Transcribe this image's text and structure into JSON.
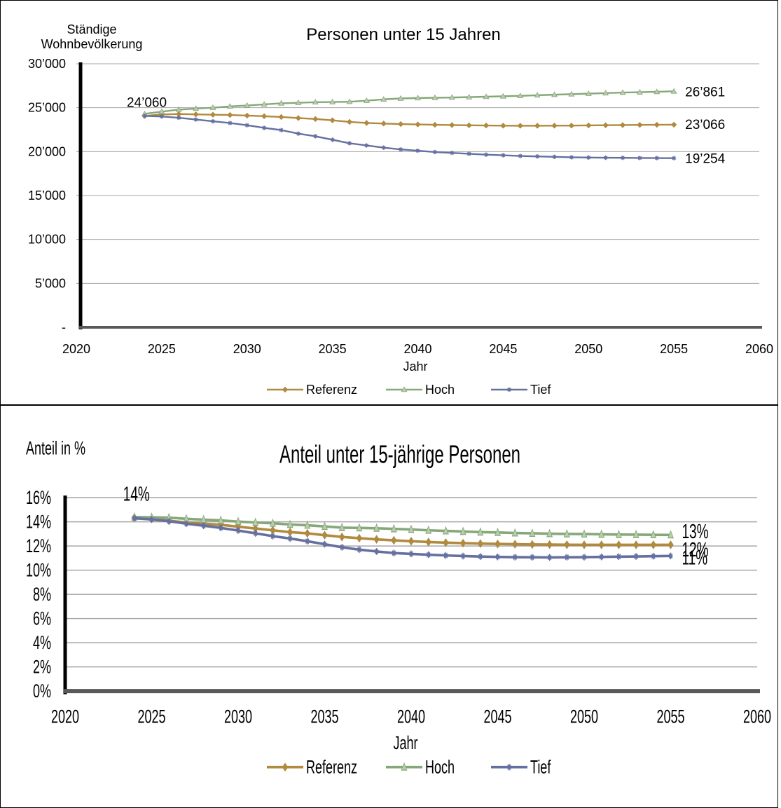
{
  "colors": {
    "referenz": "#B08A3E",
    "hoch": "#86A878",
    "tief": "#6670A0",
    "grid": "#A6A6A6",
    "axis": "#000000"
  },
  "chart_data": [
    {
      "type": "line",
      "title": "Personen unter 15 Jahren",
      "ylabel": [
        "Ständige",
        "Wohnbevölkerung"
      ],
      "xlabel": "Jahr",
      "xlim": [
        2020,
        2060
      ],
      "ylim": [
        0,
        30000
      ],
      "xticks": [
        2020,
        2025,
        2030,
        2035,
        2040,
        2045,
        2050,
        2055,
        2060
      ],
      "xtick_labels": [
        "2020",
        "2025",
        "2030",
        "2035",
        "2040",
        "2045",
        "2050",
        "2055",
        "2060"
      ],
      "yticks": [
        0,
        5000,
        10000,
        15000,
        20000,
        25000,
        30000
      ],
      "ytick_labels": [
        "-",
        "5’000",
        "10’000",
        "15’000",
        "20’000",
        "25’000",
        "30’000"
      ],
      "grid": true,
      "legend": "bottom",
      "x": [
        2024,
        2025,
        2026,
        2027,
        2028,
        2029,
        2030,
        2031,
        2032,
        2033,
        2034,
        2035,
        2036,
        2037,
        2038,
        2039,
        2040,
        2041,
        2042,
        2043,
        2044,
        2045,
        2046,
        2047,
        2048,
        2049,
        2050,
        2051,
        2052,
        2053,
        2054,
        2055
      ],
      "series": [
        {
          "name": "Referenz",
          "color_key": "referenz",
          "marker": "diamond",
          "values": [
            24060,
            24230,
            24280,
            24240,
            24200,
            24170,
            24100,
            24030,
            23940,
            23820,
            23710,
            23560,
            23380,
            23260,
            23190,
            23130,
            23090,
            23050,
            23020,
            22990,
            22970,
            22950,
            22940,
            22940,
            22950,
            22960,
            22980,
            23000,
            23020,
            23040,
            23050,
            23066
          ]
        },
        {
          "name": "Hoch",
          "color_key": "hoch",
          "marker": "triangle",
          "values": [
            24300,
            24550,
            24780,
            24900,
            25000,
            25150,
            25250,
            25380,
            25500,
            25560,
            25630,
            25650,
            25680,
            25800,
            25950,
            26050,
            26100,
            26130,
            26160,
            26200,
            26250,
            26300,
            26350,
            26420,
            26480,
            26540,
            26600,
            26660,
            26720,
            26760,
            26810,
            26861
          ]
        },
        {
          "name": "Tief",
          "color_key": "tief",
          "marker": "star",
          "values": [
            24060,
            24000,
            23850,
            23650,
            23450,
            23250,
            23000,
            22700,
            22450,
            22050,
            21750,
            21350,
            20950,
            20700,
            20450,
            20250,
            20100,
            19950,
            19850,
            19750,
            19650,
            19580,
            19500,
            19450,
            19400,
            19350,
            19320,
            19300,
            19290,
            19270,
            19260,
            19254
          ]
        }
      ],
      "annotations": [
        {
          "text": "24’060",
          "x": 2024,
          "y": 24060,
          "anchor": "above"
        },
        {
          "text": "26’861",
          "x": 2055,
          "y": 26861,
          "anchor": "right"
        },
        {
          "text": "23’066",
          "x": 2055,
          "y": 23066,
          "anchor": "right"
        },
        {
          "text": "19’254",
          "x": 2055,
          "y": 19254,
          "anchor": "right"
        }
      ]
    },
    {
      "type": "line",
      "title": "Anteil unter 15-jährige Personen",
      "ylabel": [
        "Anteil in %"
      ],
      "xlabel": "Jahr",
      "xlim": [
        2020,
        2060
      ],
      "ylim": [
        0,
        16
      ],
      "xticks": [
        2020,
        2025,
        2030,
        2035,
        2040,
        2045,
        2050,
        2055,
        2060
      ],
      "xtick_labels": [
        "2020",
        "2025",
        "2030",
        "2035",
        "2040",
        "2045",
        "2050",
        "2055",
        "2060"
      ],
      "yticks": [
        0,
        2,
        4,
        6,
        8,
        10,
        12,
        14,
        16
      ],
      "ytick_labels": [
        "0%",
        "2%",
        "4%",
        "6%",
        "8%",
        "10%",
        "12%",
        "14%",
        "16%"
      ],
      "grid": true,
      "legend": "bottom",
      "x": [
        2024,
        2025,
        2026,
        2027,
        2028,
        2029,
        2030,
        2031,
        2032,
        2033,
        2034,
        2035,
        2036,
        2037,
        2038,
        2039,
        2040,
        2041,
        2042,
        2043,
        2044,
        2045,
        2046,
        2047,
        2048,
        2049,
        2050,
        2051,
        2052,
        2053,
        2054,
        2055
      ],
      "series": [
        {
          "name": "Referenz",
          "color_key": "referenz",
          "marker": "diamond",
          "values": [
            14.35,
            14.25,
            14.1,
            13.95,
            13.85,
            13.75,
            13.6,
            13.45,
            13.3,
            13.15,
            13.05,
            12.9,
            12.75,
            12.65,
            12.55,
            12.47,
            12.4,
            12.33,
            12.28,
            12.24,
            12.2,
            12.17,
            12.15,
            12.13,
            12.12,
            12.11,
            12.1,
            12.1,
            12.1,
            12.1,
            12.1,
            12.1
          ]
        },
        {
          "name": "Hoch",
          "color_key": "hoch",
          "marker": "triangle",
          "values": [
            14.4,
            14.38,
            14.35,
            14.25,
            14.18,
            14.12,
            14.02,
            13.95,
            13.88,
            13.78,
            13.72,
            13.62,
            13.52,
            13.5,
            13.47,
            13.42,
            13.37,
            13.3,
            13.25,
            13.2,
            13.15,
            13.12,
            13.08,
            13.05,
            13.02,
            13.0,
            12.99,
            12.97,
            12.95,
            12.94,
            12.93,
            12.92
          ]
        },
        {
          "name": "Tief",
          "color_key": "tief",
          "marker": "star",
          "values": [
            14.3,
            14.2,
            14.05,
            13.85,
            13.68,
            13.5,
            13.28,
            13.05,
            12.82,
            12.62,
            12.4,
            12.15,
            11.9,
            11.7,
            11.55,
            11.42,
            11.35,
            11.28,
            11.22,
            11.17,
            11.13,
            11.1,
            11.08,
            11.07,
            11.06,
            11.07,
            11.08,
            11.1,
            11.12,
            11.14,
            11.16,
            11.18
          ]
        }
      ],
      "annotations": [
        {
          "text": "14%",
          "x": 2024,
          "y": 14.35,
          "anchor": "above"
        },
        {
          "text": "13%",
          "x": 2055,
          "y": 12.92,
          "anchor": "right"
        },
        {
          "text": "12%",
          "x": 2055,
          "y": 12.1,
          "anchor": "right"
        },
        {
          "text": "11%",
          "x": 2055,
          "y": 11.18,
          "anchor": "right"
        }
      ]
    }
  ]
}
